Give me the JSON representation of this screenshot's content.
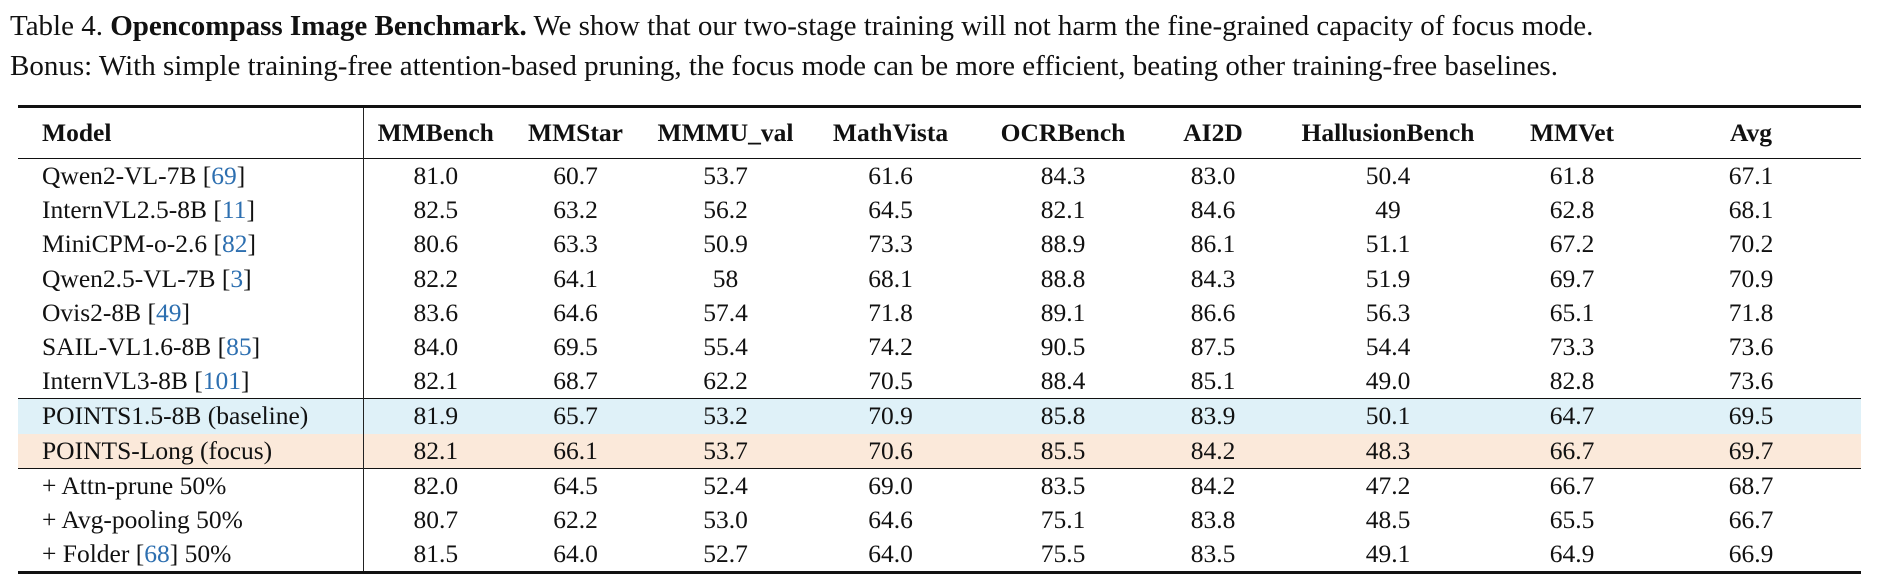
{
  "caption": {
    "label": "Table 4.",
    "title": "Opencompass Image Benchmark.",
    "text_line1": "We show that our two-stage training will not harm the fine-grained capacity of focus mode.",
    "text_line2": "Bonus: With simple training-free attention-based pruning, the focus mode can be more efficient, beating other training-free baselines."
  },
  "table": {
    "headers": [
      "Model",
      "MMBench",
      "MMStar",
      "MMMU_val",
      "MathVista",
      "OCRBench",
      "AI2D",
      "HallusionBench",
      "MMVet",
      "Avg"
    ],
    "rows": [
      {
        "model": "Qwen2-VL-7B [",
        "ref": "69",
        "suffix": "]",
        "values": [
          "81.0",
          "60.7",
          "53.7",
          "61.6",
          "84.3",
          "83.0",
          "50.4",
          "61.8",
          "67.1"
        ]
      },
      {
        "model": "InternVL2.5-8B [",
        "ref": "11",
        "suffix": "]",
        "values": [
          "82.5",
          "63.2",
          "56.2",
          "64.5",
          "82.1",
          "84.6",
          "49",
          "62.8",
          "68.1"
        ]
      },
      {
        "model": "MiniCPM-o-2.6 [",
        "ref": "82",
        "suffix": "]",
        "values": [
          "80.6",
          "63.3",
          "50.9",
          "73.3",
          "88.9",
          "86.1",
          "51.1",
          "67.2",
          "70.2"
        ]
      },
      {
        "model": "Qwen2.5-VL-7B [",
        "ref": "3",
        "suffix": "]",
        "values": [
          "82.2",
          "64.1",
          "58",
          "68.1",
          "88.8",
          "84.3",
          "51.9",
          "69.7",
          "70.9"
        ]
      },
      {
        "model": "Ovis2-8B [",
        "ref": "49",
        "suffix": "]",
        "values": [
          "83.6",
          "64.6",
          "57.4",
          "71.8",
          "89.1",
          "86.6",
          "56.3",
          "65.1",
          "71.8"
        ]
      },
      {
        "model": "SAIL-VL1.6-8B [",
        "ref": "85",
        "suffix": "]",
        "values": [
          "84.0",
          "69.5",
          "55.4",
          "74.2",
          "90.5",
          "87.5",
          "54.4",
          "73.3",
          "73.6"
        ]
      },
      {
        "model": "InternVL3-8B [",
        "ref": "101",
        "suffix": "]",
        "values": [
          "82.1",
          "68.7",
          "62.2",
          "70.5",
          "88.4",
          "85.1",
          "49.0",
          "82.8",
          "73.6"
        ]
      },
      {
        "model": "POINTS1.5-8B (baseline)",
        "ref": "",
        "suffix": "",
        "values": [
          "81.9",
          "65.7",
          "53.2",
          "70.9",
          "85.8",
          "83.9",
          "50.1",
          "64.7",
          "69.5"
        ]
      },
      {
        "model": "POINTS-Long (focus)",
        "ref": "",
        "suffix": "",
        "values": [
          "82.1",
          "66.1",
          "53.7",
          "70.6",
          "85.5",
          "84.2",
          "48.3",
          "66.7",
          "69.7"
        ]
      },
      {
        "model": "+ Attn-prune 50%",
        "ref": "",
        "suffix": "",
        "values": [
          "82.0",
          "64.5",
          "52.4",
          "69.0",
          "83.5",
          "84.2",
          "47.2",
          "66.7",
          "68.7"
        ]
      },
      {
        "model": "+ Avg-pooling 50%",
        "ref": "",
        "suffix": "",
        "values": [
          "80.7",
          "62.2",
          "53.0",
          "64.6",
          "75.1",
          "83.8",
          "48.5",
          "65.5",
          "66.7"
        ]
      },
      {
        "model": "+ Folder [",
        "ref": "68",
        "suffix": "] 50%",
        "values": [
          "81.5",
          "64.0",
          "52.7",
          "64.0",
          "75.5",
          "83.5",
          "49.1",
          "64.9",
          "66.9"
        ]
      }
    ]
  }
}
